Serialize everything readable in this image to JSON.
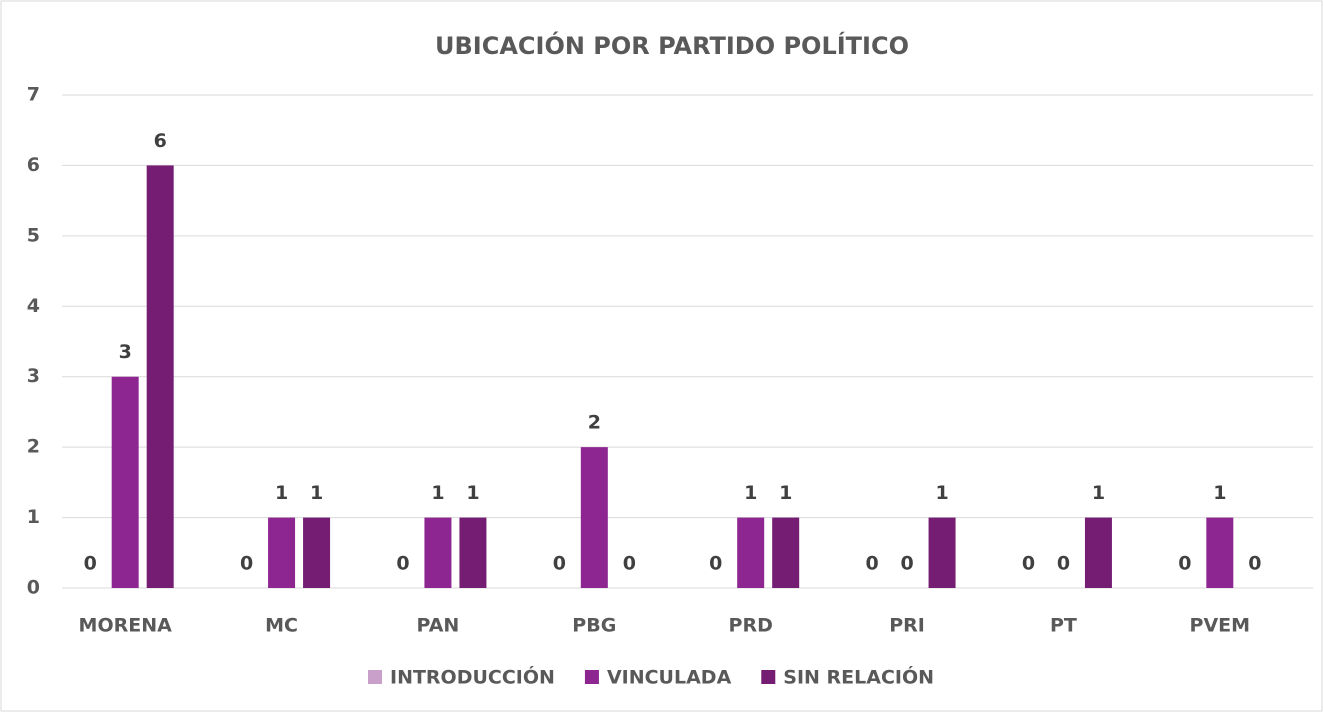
{
  "chart_data": {
    "type": "bar",
    "title": "UBICACIÓN POR PARTIDO POLÍTICO",
    "categories": [
      "MORENA",
      "MC",
      "PAN",
      "PBG",
      "PRD",
      "PRI",
      "PT",
      "PVEM"
    ],
    "series": [
      {
        "name": "INTRODUCCIÓN",
        "color": "#c9a0c9",
        "values": [
          0,
          0,
          0,
          0,
          0,
          0,
          0,
          0
        ]
      },
      {
        "name": "VINCULADA",
        "color": "#8e2691",
        "values": [
          3,
          1,
          1,
          2,
          1,
          0,
          0,
          1
        ]
      },
      {
        "name": "SIN RELACIÓN",
        "color": "#741d72",
        "values": [
          6,
          1,
          1,
          0,
          1,
          1,
          1,
          0
        ]
      }
    ],
    "ylim": [
      0,
      7
    ],
    "yticks": [
      0,
      1,
      2,
      3,
      4,
      5,
      6,
      7
    ],
    "grid": true,
    "legend": "bottom"
  }
}
